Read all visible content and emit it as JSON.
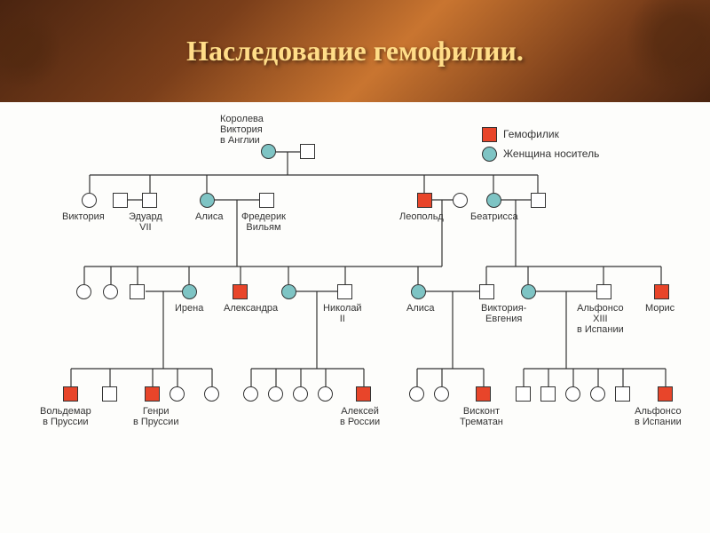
{
  "title": "Наследование гемофилии.",
  "legend": {
    "hemophilic": "Гемофилик",
    "carrier": "Женщина носитель"
  },
  "colors": {
    "hemo": "#e8452a",
    "carrier": "#7ec4c4",
    "border": "#333333",
    "bg": "#fdfdfb"
  },
  "labels": {
    "queen": "Королева\nВиктория\nв Англии",
    "victoria": "Виктория",
    "edward": "Эдуард\nVII",
    "alice": "Алиса",
    "frederick": "Фредерик\nВильям",
    "leopold": "Леопольд",
    "beatrice": "Беатрисса",
    "irene": "Ирена",
    "alexandra": "Александра",
    "nicholas": "Николай\nII",
    "alice2": "Алиса",
    "victoria_eugenie": "Виктория-\nЕвгения",
    "alfonso13": "Альфонсо\nXIII\nв Испании",
    "maurice": "Морис",
    "waldemar": "Вольдемар\nв Пруссии",
    "henry": "Генри\nв Пруссии",
    "alexei": "Алексей\nв России",
    "viscount": "Висконт\nТрематан",
    "alfonso_sp": "Альфонсо\nв Испании"
  }
}
